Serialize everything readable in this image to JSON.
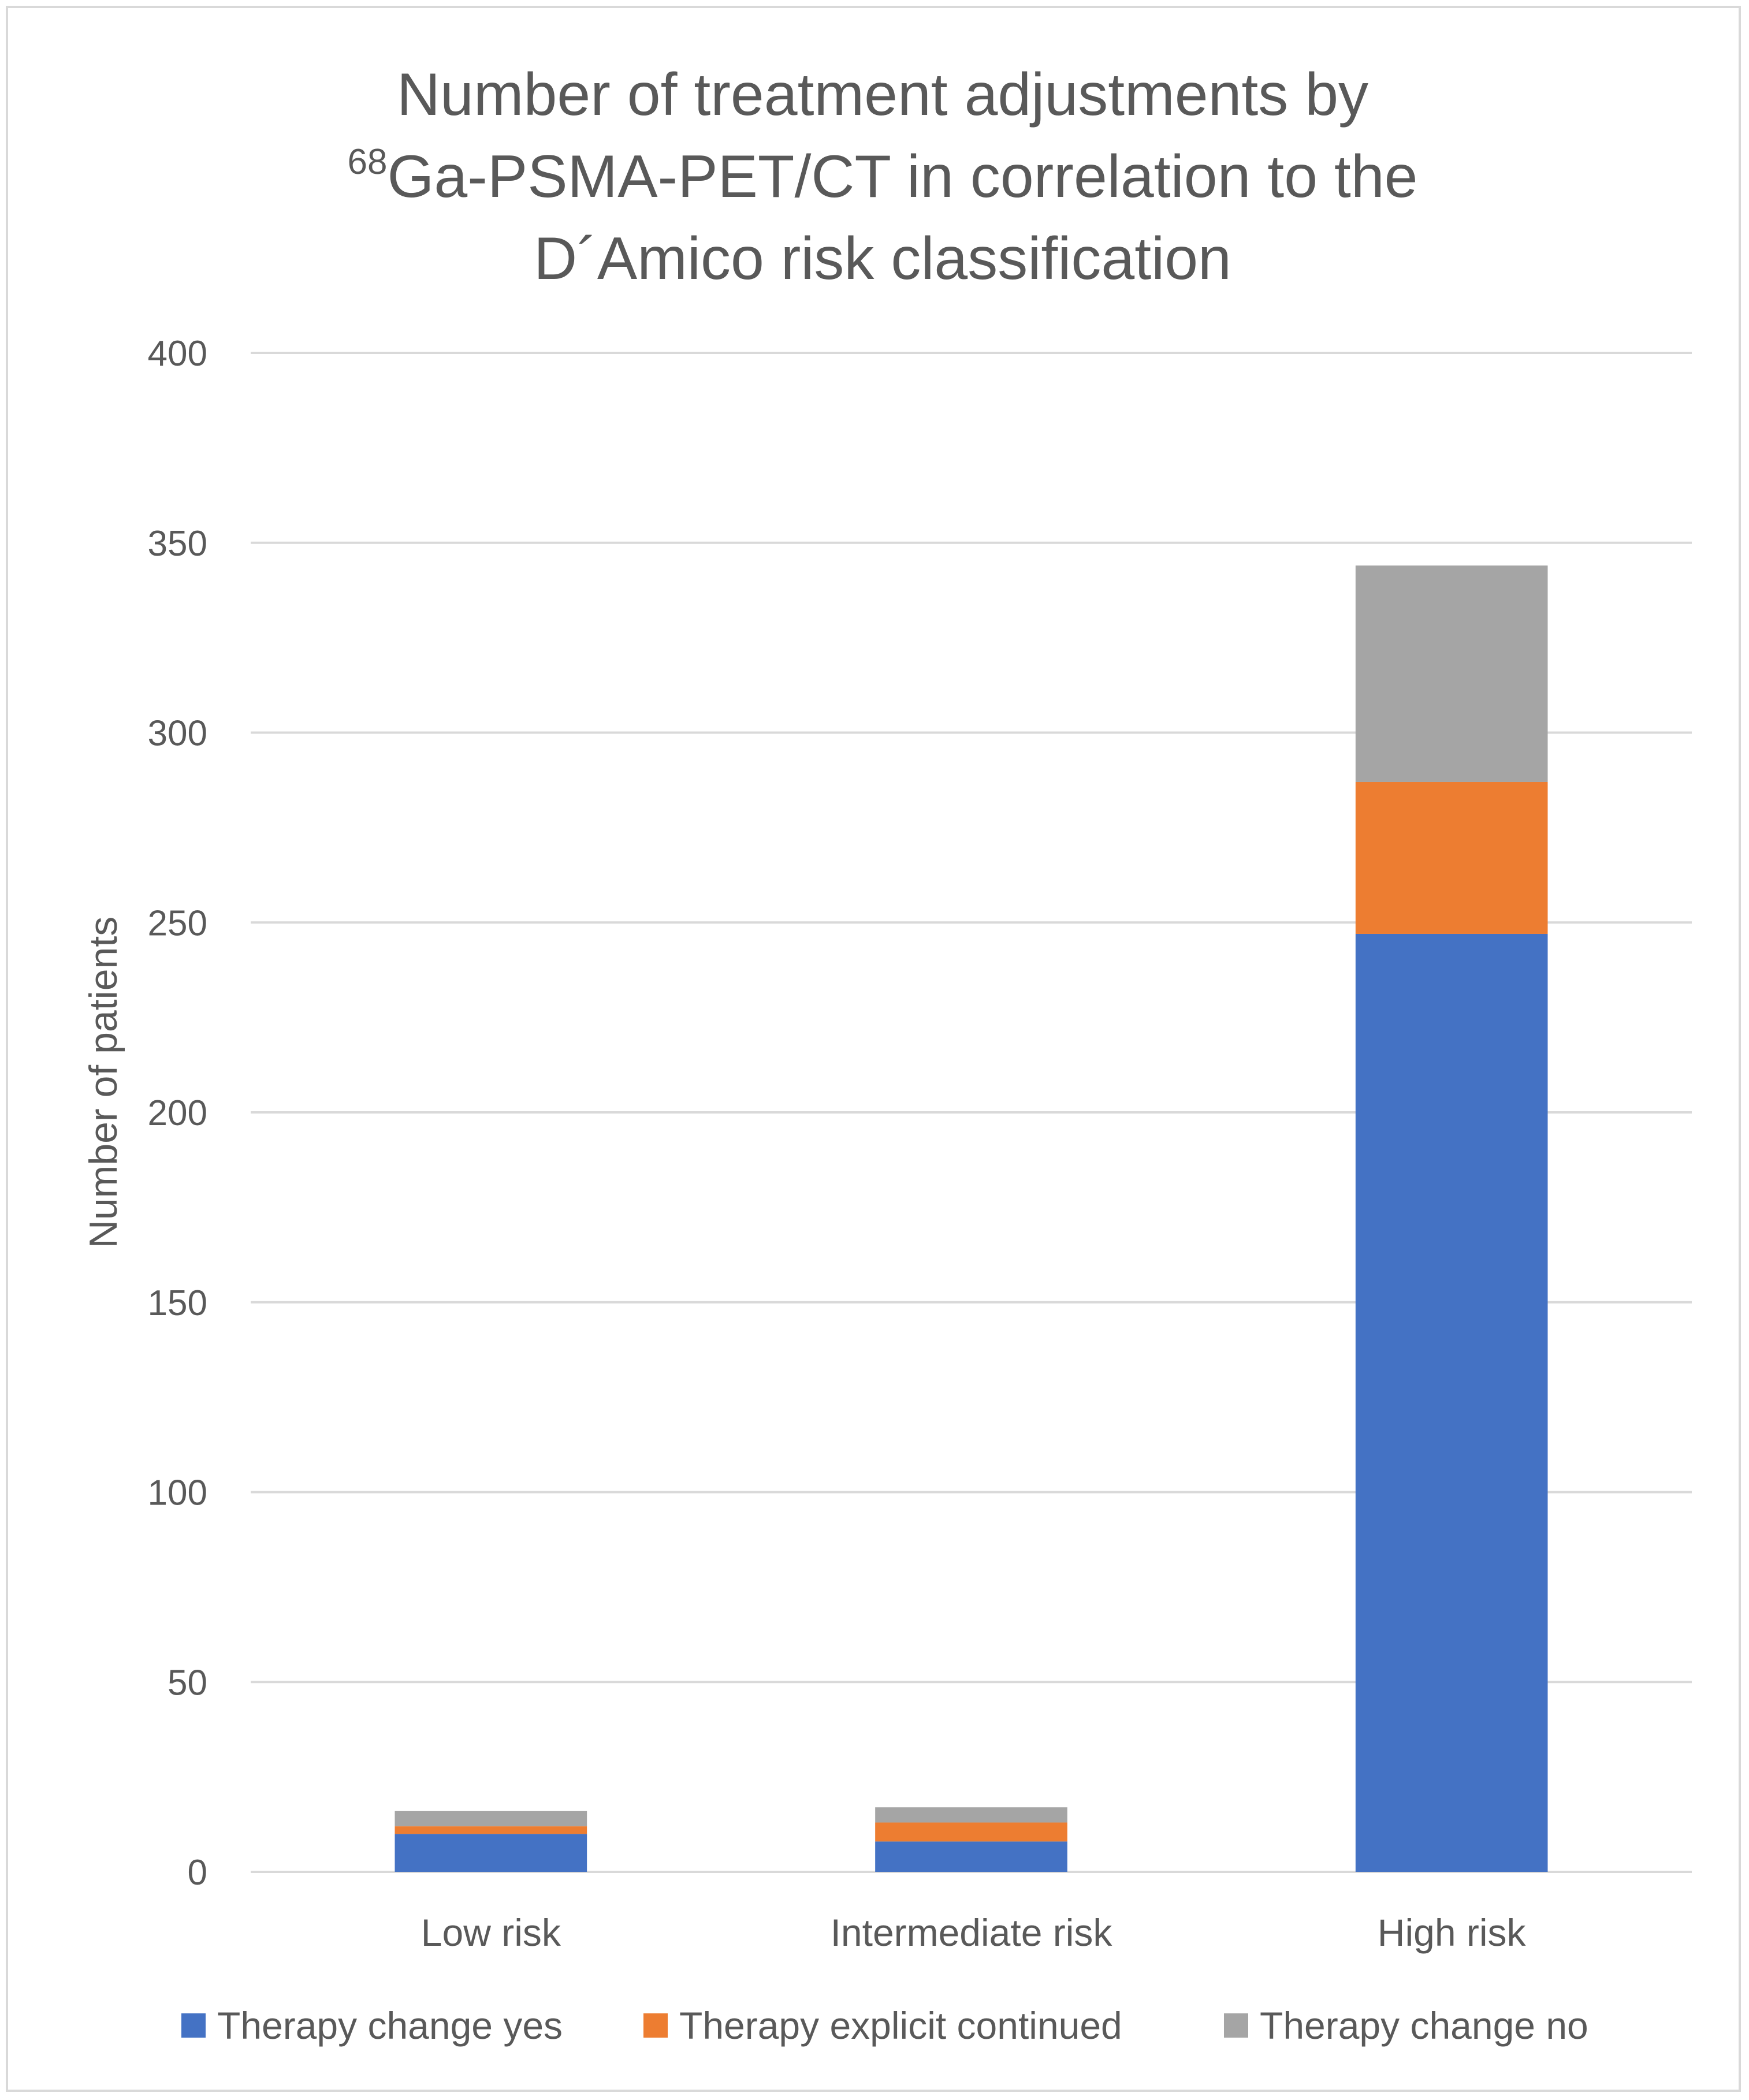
{
  "chart_data": {
    "type": "bar",
    "stacked": true,
    "title_line1": "Number of treatment adjustments by",
    "title_line2_sup": "68",
    "title_line2": "Ga-PSMA-PET/CT in correlation to the",
    "title_line3": "D´Amico risk classification",
    "xlabel": "",
    "ylabel": "Number of patients",
    "ylim": [
      0,
      400
    ],
    "yticks": [
      0,
      50,
      100,
      150,
      200,
      250,
      300,
      350,
      400
    ],
    "grid": true,
    "legend_position": "bottom",
    "categories": [
      "Low risk",
      "Intermediate risk",
      "High risk"
    ],
    "series": [
      {
        "name": "Therapy change yes",
        "color": "#4472c4",
        "values": [
          10,
          8,
          247
        ]
      },
      {
        "name": "Therapy explicit continued",
        "color": "#ed7d31",
        "values": [
          2,
          5,
          40
        ]
      },
      {
        "name": "Therapy change no",
        "color": "#a5a5a5",
        "values": [
          4,
          4,
          57
        ]
      }
    ]
  }
}
